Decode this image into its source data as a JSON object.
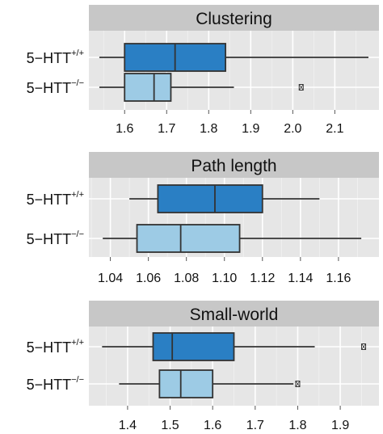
{
  "chart_data": [
    {
      "type": "boxplot",
      "orientation": "horizontal",
      "title": "Clustering",
      "xlim": [
        1.515,
        2.205
      ],
      "x_ticks": [
        1.6,
        1.7,
        1.8,
        1.9,
        2.0,
        2.1
      ],
      "tick_labels": [
        "1.6",
        "1.7",
        "1.8",
        "1.9",
        "2.0",
        "2.1"
      ],
      "grid": true,
      "series": [
        {
          "category": "5−HTT",
          "superscript": "+/+",
          "color": "#2a7fc4",
          "whisker_low": 1.54,
          "q1": 1.6,
          "median": 1.72,
          "q3": 1.84,
          "whisker_high": 2.18,
          "outliers": []
        },
        {
          "category": "5−HTT",
          "superscript": "−/−",
          "color": "#9dcbe5",
          "whisker_low": 1.54,
          "q1": 1.6,
          "median": 1.67,
          "q3": 1.71,
          "whisker_high": 1.86,
          "outliers": [
            2.02
          ]
        }
      ]
    },
    {
      "type": "boxplot",
      "orientation": "horizontal",
      "title": "Path length",
      "xlim": [
        1.0287,
        1.1813
      ],
      "x_ticks": [
        1.04,
        1.06,
        1.08,
        1.1,
        1.12,
        1.14,
        1.16
      ],
      "tick_labels": [
        "1.04",
        "1.06",
        "1.08",
        "1.10",
        "1.12",
        "1.14",
        "1.16"
      ],
      "grid": true,
      "series": [
        {
          "category": "5−HTT",
          "superscript": "+/+",
          "color": "#2a7fc4",
          "whisker_low": 1.05,
          "q1": 1.065,
          "median": 1.095,
          "q3": 1.12,
          "whisker_high": 1.15,
          "outliers": []
        },
        {
          "category": "5−HTT",
          "superscript": "−/−",
          "color": "#9dcbe5",
          "whisker_low": 1.036,
          "q1": 1.054,
          "median": 1.077,
          "q3": 1.108,
          "whisker_high": 1.172,
          "outliers": []
        }
      ]
    },
    {
      "type": "boxplot",
      "orientation": "horizontal",
      "title": "Small-world",
      "xlim": [
        1.309,
        1.991
      ],
      "x_ticks": [
        1.4,
        1.5,
        1.6,
        1.7,
        1.8,
        1.9
      ],
      "tick_labels": [
        "1.4",
        "1.5",
        "1.6",
        "1.7",
        "1.8",
        "1.9"
      ],
      "grid": true,
      "series": [
        {
          "category": "5−HTT",
          "superscript": "+/+",
          "color": "#2a7fc4",
          "whisker_low": 1.34,
          "q1": 1.46,
          "median": 1.505,
          "q3": 1.65,
          "whisker_high": 1.84,
          "outliers": [
            1.955
          ]
        },
        {
          "category": "5−HTT",
          "superscript": "−/−",
          "color": "#9dcbe5",
          "whisker_low": 1.38,
          "q1": 1.475,
          "median": 1.525,
          "q3": 1.6,
          "whisker_high": 1.79,
          "outliers": [
            1.8
          ]
        }
      ]
    }
  ]
}
